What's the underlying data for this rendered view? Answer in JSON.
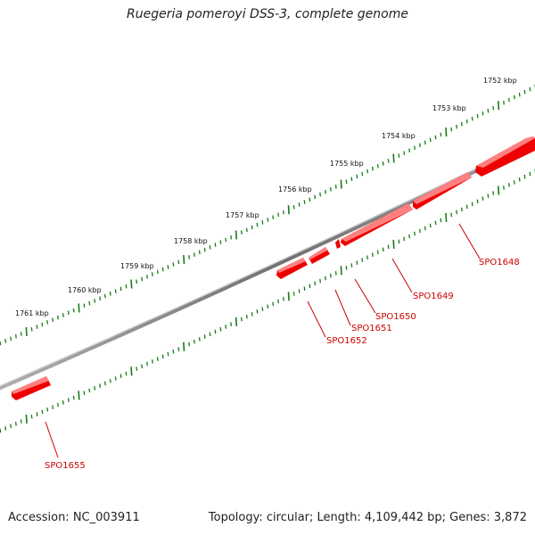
{
  "title": "Ruegeria pomeroyi DSS-3, complete genome",
  "footer": {
    "accession": "Accession: NC_003911",
    "summary": "Topology: circular; Length: 4,109,442 bp; Genes: 3,872"
  },
  "colors": {
    "backbone": "#808080",
    "gene": "#ee0000",
    "gene_label": "#cc0000",
    "ticks": "#1a7a1a"
  },
  "scale_labels": [
    "1752 kbp",
    "1753 kbp",
    "1754 kbp",
    "1755 kbp",
    "1756 kbp",
    "1757 kbp",
    "1758 kbp",
    "1759 kbp",
    "1760 kbp",
    "1761 kbp"
  ],
  "genes": [
    {
      "id": "SPO1648"
    },
    {
      "id": "SPO1649"
    },
    {
      "id": "SPO1650"
    },
    {
      "id": "SPO1651"
    },
    {
      "id": "SPO1652"
    },
    {
      "id": "SPO1655"
    }
  ]
}
